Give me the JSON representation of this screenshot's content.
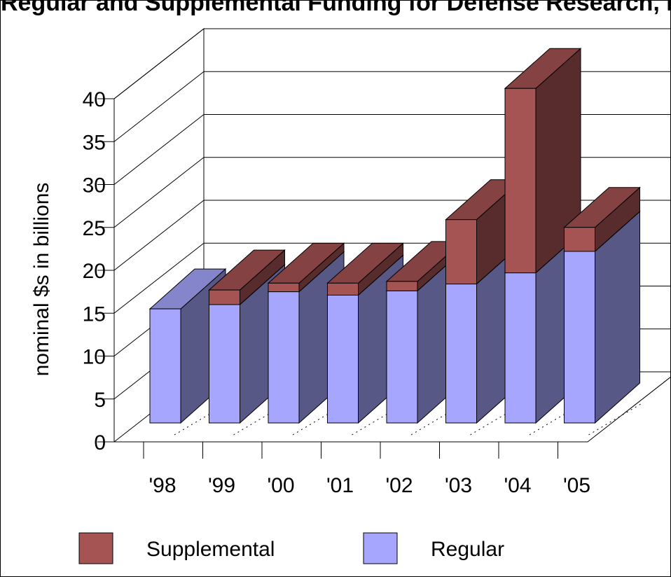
{
  "chart_data": {
    "type": "bar",
    "subtype": "stacked-3d",
    "title": "Regular and Supplemental Funding for Defense Research, Development",
    "ylabel": "nominal $s in billions",
    "xlabel": "",
    "ylim": [
      0,
      40
    ],
    "yticks": [
      "0",
      "5",
      "10",
      "15",
      "20",
      "25",
      "30",
      "35",
      "40"
    ],
    "categories": [
      "'98",
      "'99",
      "'00",
      "'01",
      "'02",
      "'03",
      "'04",
      "'05"
    ],
    "series": [
      {
        "name": "Regular",
        "color": "#a6a6ff",
        "values": [
          13.3,
          13.8,
          15.3,
          14.9,
          15.4,
          16.2,
          17.5,
          20.0
        ]
      },
      {
        "name": "Supplemental",
        "color": "#a65353",
        "values": [
          0,
          1.7,
          1.0,
          1.4,
          1.1,
          7.5,
          21.5,
          2.8
        ]
      }
    ],
    "legend": {
      "position": "bottom",
      "entries": [
        "Supplemental",
        "Regular"
      ]
    },
    "grid": true
  }
}
